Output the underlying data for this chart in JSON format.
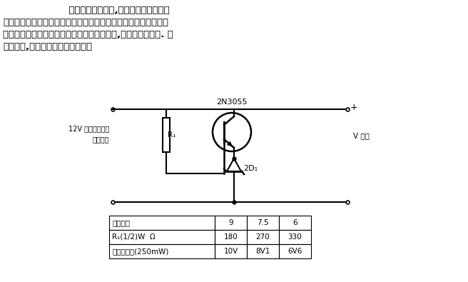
{
  "bg_color": "#ffffff",
  "text_color": "#000000",
  "line1": "                    它由汽车电池供电,为收音机、盒式录音",
  "line2": "机和其他电气设备提供电源。图中给出了对于不同电压的电阅的値",
  "line3": "和二极管的型号。如果所需要的电压不止一个,就要设选通开关. 对",
  "line4": "于大电流,晶体管要装在散热片上。",
  "transistor_label": "2N3055",
  "resistor_label": "R₁",
  "input_label_line1": "12V 标称电压来自",
  "input_label_line2": "汽车电路",
  "output_label": "V 输出",
  "diode_label": "2D₁",
  "plus_label": "+",
  "table_headers": [
    "输出电压",
    "9",
    "7.5",
    "6"
  ],
  "table_row1": [
    "R₁(1/2)W  Ω",
    "180",
    "270",
    "330"
  ],
  "table_row2": [
    "稳压二极管(250mW)",
    "10V",
    "8V1",
    "6V6"
  ]
}
